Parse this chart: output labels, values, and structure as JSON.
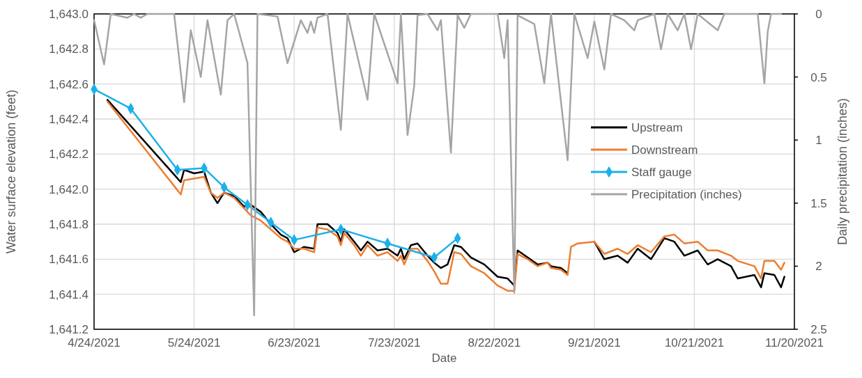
{
  "chart_data": {
    "type": "line",
    "xlabel": "Date",
    "ylabel": "Water surface elevation (feet)",
    "y2label": "Daily precipitation (inches)",
    "xlim": [
      "2021-04-24",
      "2021-11-20"
    ],
    "xticks": [
      {
        "value": "2021-04-24",
        "label": "4/24/2021"
      },
      {
        "value": "2021-05-24",
        "label": "5/24/2021"
      },
      {
        "value": "2021-06-23",
        "label": "6/23/2021"
      },
      {
        "value": "2021-07-23",
        "label": "7/23/2021"
      },
      {
        "value": "2021-08-22",
        "label": "8/22/2021"
      },
      {
        "value": "2021-09-21",
        "label": "9/21/2021"
      },
      {
        "value": "2021-10-21",
        "label": "10/21/2021"
      },
      {
        "value": "2021-11-20",
        "label": "11/20/2021"
      }
    ],
    "ylim": [
      1641.2,
      1643.0
    ],
    "yticks": [
      {
        "value": 1641.2,
        "label": "1,641.2"
      },
      {
        "value": 1641.4,
        "label": "1,641.4"
      },
      {
        "value": 1641.6,
        "label": "1,641.6"
      },
      {
        "value": 1641.8,
        "label": "1,641.8"
      },
      {
        "value": 1642.0,
        "label": "1,642.0"
      },
      {
        "value": 1642.2,
        "label": "1,642.2"
      },
      {
        "value": 1642.4,
        "label": "1,642.4"
      },
      {
        "value": 1642.6,
        "label": "1,642.6"
      },
      {
        "value": 1642.8,
        "label": "1,642.8"
      },
      {
        "value": 1643.0,
        "label": "1,643.0"
      }
    ],
    "y2lim": [
      2.5,
      0
    ],
    "y2ticks": [
      0,
      0.5,
      1,
      1.5,
      2,
      2.5
    ],
    "grid": true,
    "legend": "right",
    "line_style": "solid",
    "series": [
      {
        "name": "Upstream",
        "color": "#000000",
        "marker": "none",
        "x": [
          "2021-04-28",
          "2021-05-20",
          "2021-05-21",
          "2021-05-24",
          "2021-05-27",
          "2021-05-29",
          "2021-05-31",
          "2021-06-02",
          "2021-06-05",
          "2021-06-08",
          "2021-06-10",
          "2021-06-13",
          "2021-06-16",
          "2021-06-19",
          "2021-06-21",
          "2021-06-23",
          "2021-06-26",
          "2021-06-29",
          "2021-06-30",
          "2021-07-03",
          "2021-07-06",
          "2021-07-07",
          "2021-07-08",
          "2021-07-11",
          "2021-07-13",
          "2021-07-15",
          "2021-07-18",
          "2021-07-21",
          "2021-07-24",
          "2021-07-25",
          "2021-07-26",
          "2021-07-28",
          "2021-07-30",
          "2021-08-02",
          "2021-08-04",
          "2021-08-06",
          "2021-08-08",
          "2021-08-10",
          "2021-08-12",
          "2021-08-15",
          "2021-08-19",
          "2021-08-23",
          "2021-08-26",
          "2021-08-28",
          "2021-08-29",
          "2021-09-01",
          "2021-09-04",
          "2021-09-07",
          "2021-09-08",
          "2021-09-11",
          "2021-09-13",
          "2021-09-14",
          "2021-09-16",
          "2021-09-21",
          "2021-09-24",
          "2021-09-28",
          "2021-10-01",
          "2021-10-04",
          "2021-10-08",
          "2021-10-12",
          "2021-10-15",
          "2021-10-18",
          "2021-10-22",
          "2021-10-25",
          "2021-10-28",
          "2021-11-01",
          "2021-11-03",
          "2021-11-08",
          "2021-11-10",
          "2021-11-11",
          "2021-11-14",
          "2021-11-16",
          "2021-11-17"
        ],
        "values": [
          1642.51,
          1642.04,
          1642.11,
          1642.09,
          1642.1,
          1641.98,
          1641.92,
          1641.98,
          1641.96,
          1641.9,
          1641.91,
          1641.87,
          1641.8,
          1641.74,
          1641.72,
          1641.64,
          1641.67,
          1641.66,
          1641.8,
          1641.8,
          1641.75,
          1641.7,
          1641.77,
          1641.7,
          1641.65,
          1641.7,
          1641.65,
          1641.66,
          1641.62,
          1641.66,
          1641.6,
          1641.68,
          1641.69,
          1641.62,
          1641.58,
          1641.55,
          1641.57,
          1641.68,
          1641.67,
          1641.61,
          1641.57,
          1641.5,
          1641.49,
          1641.45,
          1641.65,
          1641.61,
          1641.57,
          1641.58,
          1641.56,
          1641.55,
          1641.52,
          null,
          null,
          1641.7,
          1641.6,
          1641.62,
          1641.58,
          1641.66,
          1641.6,
          1641.72,
          1641.7,
          1641.62,
          1641.65,
          1641.57,
          1641.6,
          1641.56,
          1641.49,
          1641.51,
          1641.44,
          1641.52,
          1641.51,
          1641.44,
          1641.5
        ]
      },
      {
        "name": "Downstream",
        "color": "#ed7d31",
        "marker": "none",
        "x": [
          "2021-04-28",
          "2021-05-20",
          "2021-05-21",
          "2021-05-24",
          "2021-05-27",
          "2021-05-29",
          "2021-05-31",
          "2021-06-02",
          "2021-06-05",
          "2021-06-08",
          "2021-06-10",
          "2021-06-13",
          "2021-06-16",
          "2021-06-19",
          "2021-06-21",
          "2021-06-23",
          "2021-06-26",
          "2021-06-29",
          "2021-06-30",
          "2021-07-03",
          "2021-07-06",
          "2021-07-07",
          "2021-07-08",
          "2021-07-11",
          "2021-07-13",
          "2021-07-15",
          "2021-07-18",
          "2021-07-21",
          "2021-07-24",
          "2021-07-25",
          "2021-07-26",
          "2021-07-28",
          "2021-07-30",
          "2021-08-02",
          "2021-08-04",
          "2021-08-06",
          "2021-08-08",
          "2021-08-10",
          "2021-08-12",
          "2021-08-15",
          "2021-08-19",
          "2021-08-23",
          "2021-08-26",
          "2021-08-28",
          "2021-08-29",
          "2021-09-01",
          "2021-09-04",
          "2021-09-07",
          "2021-09-08",
          "2021-09-11",
          "2021-09-13",
          "2021-09-14",
          "2021-09-16",
          "2021-09-21",
          "2021-09-24",
          "2021-09-28",
          "2021-10-01",
          "2021-10-04",
          "2021-10-08",
          "2021-10-12",
          "2021-10-15",
          "2021-10-18",
          "2021-10-22",
          "2021-10-25",
          "2021-10-28",
          "2021-11-01",
          "2021-11-03",
          "2021-11-08",
          "2021-11-10",
          "2021-11-11",
          "2021-11-14",
          "2021-11-16",
          "2021-11-17"
        ],
        "values": [
          1642.5,
          1641.97,
          1642.05,
          1642.06,
          1642.07,
          1641.98,
          1641.95,
          1641.98,
          1641.95,
          1641.89,
          1641.85,
          1641.82,
          1641.77,
          1641.72,
          1641.7,
          1641.66,
          1641.66,
          1641.64,
          1641.78,
          1641.77,
          1641.73,
          1641.68,
          1641.75,
          1641.68,
          1641.62,
          1641.68,
          1641.62,
          1641.64,
          1641.59,
          1641.62,
          1641.57,
          1641.66,
          1641.66,
          1641.59,
          1641.53,
          1641.46,
          1641.46,
          1641.64,
          1641.63,
          1641.56,
          1641.52,
          1641.45,
          1641.42,
          1641.42,
          1641.63,
          1641.6,
          1641.56,
          1641.58,
          1641.55,
          1641.54,
          1641.51,
          1641.67,
          1641.69,
          1641.7,
          1641.63,
          1641.66,
          1641.63,
          1641.68,
          1641.64,
          1641.73,
          1641.74,
          1641.69,
          1641.7,
          1641.65,
          1641.65,
          1641.62,
          1641.59,
          1641.56,
          1641.49,
          1641.59,
          1641.59,
          1641.54,
          1641.58
        ]
      },
      {
        "name": "Staff gauge",
        "color": "#1cb0e8",
        "marker": "diamond",
        "x": [
          "2021-04-24",
          "2021-05-05",
          "2021-05-19",
          "2021-05-27",
          "2021-06-02",
          "2021-06-09",
          "2021-06-16",
          "2021-06-23",
          "2021-07-07",
          "2021-07-21",
          "2021-08-04",
          "2021-08-11"
        ],
        "values": [
          1642.57,
          1642.46,
          1642.11,
          1642.12,
          1642.01,
          1641.91,
          1641.81,
          1641.71,
          1641.77,
          1641.69,
          1641.61,
          1641.72
        ]
      },
      {
        "name": "Precipitation (inches)",
        "color": "#a5a5a5",
        "marker": "none",
        "axis": "y2",
        "x": [
          "2021-04-24",
          "2021-04-27",
          "2021-04-29",
          "2021-05-04",
          "2021-05-06",
          "2021-05-08",
          "2021-05-10",
          "2021-05-18",
          "2021-05-21",
          "2021-05-23",
          "2021-05-26",
          "2021-05-28",
          "2021-06-01",
          "2021-06-03",
          "2021-06-05",
          "2021-06-09",
          "2021-06-11",
          "2021-06-12",
          "2021-06-18",
          "2021-06-21",
          "2021-06-23",
          "2021-06-25",
          "2021-06-27",
          "2021-06-28",
          "2021-06-29",
          "2021-06-30",
          "2021-07-03",
          "2021-07-07",
          "2021-07-09",
          "2021-07-15",
          "2021-07-17",
          "2021-07-24",
          "2021-07-25",
          "2021-07-27",
          "2021-07-29",
          "2021-07-30",
          "2021-08-02",
          "2021-08-05",
          "2021-08-06",
          "2021-08-09",
          "2021-08-11",
          "2021-08-13",
          "2021-08-15",
          "2021-08-23",
          "2021-08-25",
          "2021-08-26",
          "2021-08-28",
          "2021-08-29",
          "2021-09-03",
          "2021-09-06",
          "2021-09-08",
          "2021-09-13",
          "2021-09-15",
          "2021-09-19",
          "2021-09-21",
          "2021-09-24",
          "2021-09-26",
          "2021-09-30",
          "2021-10-03",
          "2021-10-04",
          "2021-10-09",
          "2021-10-11",
          "2021-10-13",
          "2021-10-16",
          "2021-10-18",
          "2021-10-20",
          "2021-10-22",
          "2021-10-28",
          "2021-10-30",
          "2021-11-09",
          "2021-11-11",
          "2021-11-12",
          "2021-11-13",
          "2021-11-16"
        ],
        "values": [
          0.05,
          0.4,
          0,
          0.03,
          0,
          0.03,
          0,
          0,
          0.7,
          0.13,
          0.5,
          0.05,
          0.64,
          0.05,
          0,
          0.39,
          2.39,
          0,
          0.02,
          0.39,
          0.22,
          0.05,
          0.15,
          0.06,
          0.15,
          0.03,
          0,
          0.92,
          0,
          0.68,
          0,
          0.55,
          0,
          0.96,
          0.57,
          0.01,
          0,
          0.13,
          0.05,
          1.1,
          0.01,
          0.11,
          0,
          0,
          0.35,
          0.05,
          2.21,
          0.01,
          0.08,
          0.55,
          0,
          1.16,
          0,
          0.35,
          0.06,
          0.44,
          0,
          0.05,
          0.13,
          0.05,
          0,
          0.28,
          0,
          0.13,
          0,
          0.28,
          0,
          0.13,
          0,
          0,
          0.55,
          0.14,
          0,
          0
        ]
      }
    ]
  }
}
